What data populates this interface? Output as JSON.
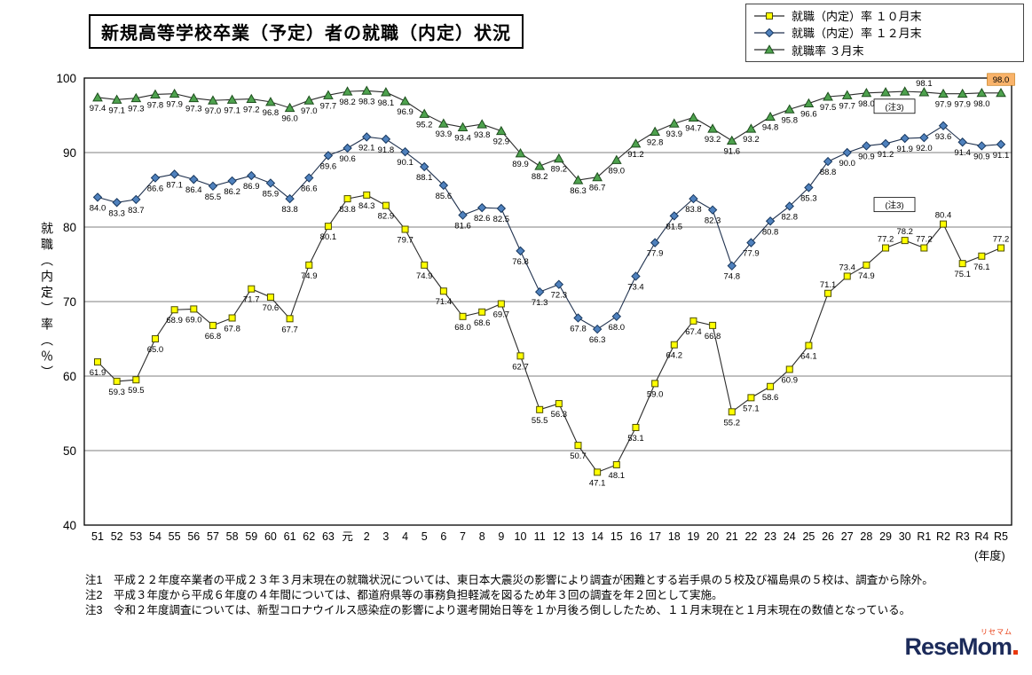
{
  "title": "新規高等学校卒業（予定）者の就職（内定）状況",
  "legend": [
    {
      "label": "就職（内定）率 １０月末"
    },
    {
      "label": "就職（内定）率 １２月末"
    },
    {
      "label": "就職率 ３月末"
    }
  ],
  "axis": {
    "y_title": "就職（内定）率（％）",
    "unit_label": "(年度)"
  },
  "chart_data": {
    "type": "line",
    "title": "新規高等学校卒業（予定）者の就職（内定）状況",
    "xlabel": "年度",
    "ylabel": "就職（内定）率（％）",
    "ylim": [
      40,
      100
    ],
    "yticks": [
      40,
      50,
      60,
      70,
      80,
      90,
      100
    ],
    "grid": true,
    "legend_position": "top-right",
    "categories": [
      "51",
      "52",
      "53",
      "54",
      "55",
      "56",
      "57",
      "58",
      "59",
      "60",
      "61",
      "62",
      "63",
      "元",
      "2",
      "3",
      "4",
      "5",
      "6",
      "7",
      "8",
      "9",
      "10",
      "11",
      "12",
      "13",
      "14",
      "15",
      "16",
      "17",
      "18",
      "19",
      "20",
      "21",
      "22",
      "23",
      "24",
      "25",
      "26",
      "27",
      "28",
      "29",
      "30",
      "R1",
      "R2",
      "R3",
      "R4",
      "R5"
    ],
    "series": [
      {
        "name": "就職（内定）率 １０月末",
        "marker": "square",
        "marker_fill": "#ffff00",
        "marker_stroke": "#4d4d00",
        "line_color": "#2b2b2b",
        "values": [
          61.9,
          59.3,
          59.5,
          65.0,
          68.9,
          69.0,
          66.8,
          67.8,
          71.7,
          70.6,
          67.7,
          74.9,
          80.1,
          83.8,
          84.3,
          82.9,
          79.7,
          74.9,
          71.4,
          68.0,
          68.6,
          69.7,
          62.7,
          55.5,
          56.3,
          50.7,
          47.1,
          48.1,
          53.1,
          59.0,
          64.2,
          67.4,
          66.8,
          55.2,
          57.1,
          58.6,
          60.9,
          64.1,
          71.1,
          73.4,
          74.9,
          77.2,
          78.2,
          77.2,
          80.4,
          75.1,
          76.1,
          77.2
        ]
      },
      {
        "name": "就職（内定）率 １２月末",
        "marker": "diamond",
        "marker_fill": "#4f81bd",
        "marker_stroke": "#17375e",
        "line_color": "#20324f",
        "values": [
          84.0,
          83.3,
          83.7,
          86.6,
          87.1,
          86.4,
          85.5,
          86.2,
          86.9,
          85.9,
          83.8,
          86.6,
          89.6,
          90.6,
          92.1,
          91.8,
          90.1,
          88.1,
          85.6,
          81.6,
          82.6,
          82.5,
          76.8,
          71.3,
          72.3,
          67.8,
          66.3,
          68.0,
          73.4,
          77.9,
          81.5,
          83.8,
          82.3,
          74.8,
          77.9,
          80.8,
          82.8,
          85.3,
          88.8,
          90.0,
          90.9,
          91.2,
          91.9,
          92.0,
          93.6,
          91.4,
          90.9,
          91.1
        ]
      },
      {
        "name": "就職率 ３月末",
        "marker": "triangle",
        "marker_fill": "#4ea24e",
        "marker_stroke": "#1d4d1d",
        "line_color": "#2b2b2b",
        "values": [
          97.4,
          97.1,
          97.3,
          97.8,
          97.9,
          97.3,
          97.0,
          97.1,
          97.2,
          96.8,
          96.0,
          97.0,
          97.7,
          98.2,
          98.3,
          98.1,
          96.9,
          95.2,
          93.9,
          93.4,
          93.8,
          92.9,
          89.9,
          88.2,
          89.2,
          86.3,
          86.7,
          89.0,
          91.2,
          92.8,
          93.9,
          94.7,
          93.2,
          91.6,
          93.2,
          94.8,
          95.8,
          96.6,
          97.5,
          97.7,
          98.0,
          98.1,
          98.2,
          98.1,
          97.9,
          97.9,
          98.0,
          98.0
        ]
      }
    ],
    "highlight": {
      "series": "就職率 ３月末",
      "category": "R5",
      "value": 98.0,
      "color": "#f9b36a"
    },
    "annotations": [
      {
        "text": "(注3)",
        "series_index": 1,
        "point_index": 44
      },
      {
        "text": "(注3)",
        "series_index": 0,
        "point_index": 44
      }
    ]
  },
  "notes": [
    "注1　平成２２年度卒業者の平成２３年３月末現在の就職状況については、東日本大震災の影響により調査が困難とする岩手県の５校及び福島県の５校は、調査から除外。",
    "注2　平成３年度から平成６年度の４年間については、都道府県等の事務負担軽減を図るため年３回の調査を年２回として実施。",
    "注3　令和２年度調査については、新型コロナウイルス感染症の影響により選考開始日等を１か月後ろ倒ししたため、１１月末現在と１月末現在の数値となっている。"
  ],
  "logo": {
    "text": "ReseMom",
    "kana": "リセマム"
  }
}
